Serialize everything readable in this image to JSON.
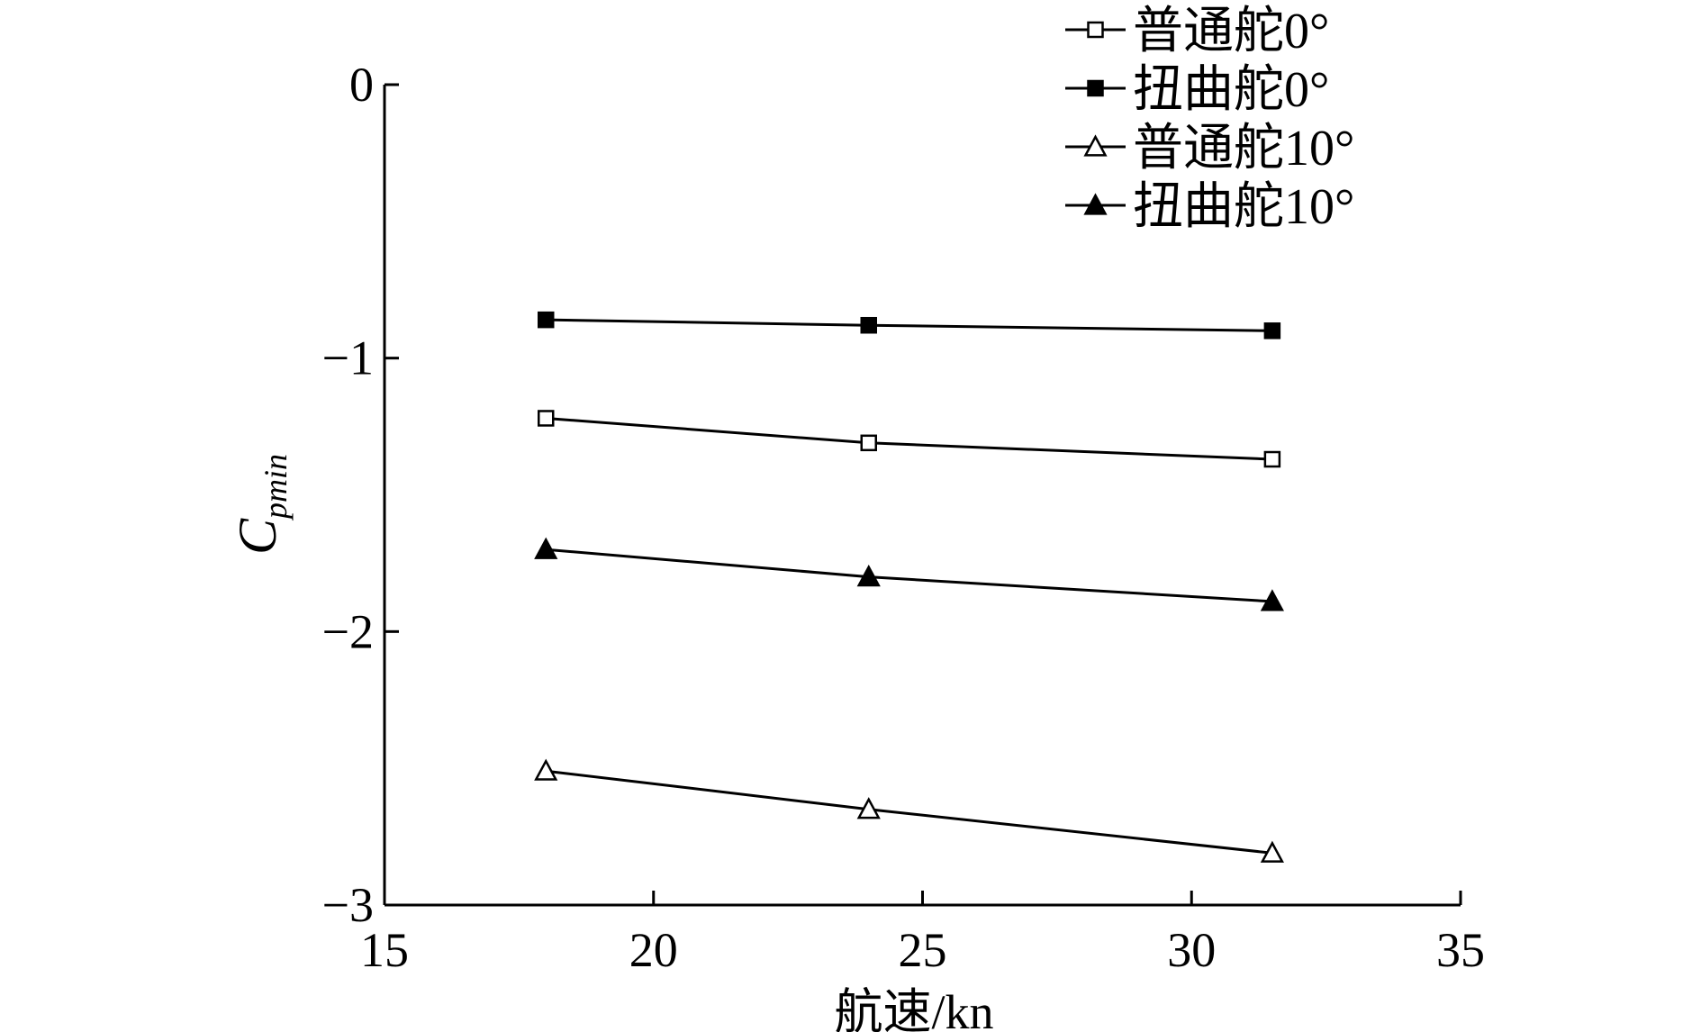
{
  "chart_data": {
    "type": "line",
    "xlabel": "航速/kn",
    "ylabel": {
      "main": "C",
      "sub": "pmin"
    },
    "xlim": [
      15,
      35
    ],
    "ylim": [
      -3,
      0
    ],
    "xticks": [
      15,
      20,
      25,
      30,
      35
    ],
    "yticks": [
      0,
      -1,
      -2,
      -3
    ],
    "xtick_labels": [
      "15",
      "20",
      "25",
      "30",
      "35"
    ],
    "ytick_labels": [
      "0",
      "−1",
      "−2",
      "−3"
    ],
    "grid": false,
    "legend_position": "top-right",
    "series": [
      {
        "name": "普通舵0°",
        "marker": "square-open",
        "x": [
          18,
          24,
          31.5
        ],
        "y": [
          -1.22,
          -1.31,
          -1.37
        ]
      },
      {
        "name": "扭曲舵0°",
        "marker": "square-filled",
        "x": [
          18,
          24,
          31.5
        ],
        "y": [
          -0.86,
          -0.88,
          -0.9
        ]
      },
      {
        "name": "普通舵10°",
        "marker": "triangle-open",
        "x": [
          18,
          24,
          31.5
        ],
        "y": [
          -2.51,
          -2.65,
          -2.81
        ]
      },
      {
        "name": "扭曲舵10°",
        "marker": "triangle-filled",
        "x": [
          18,
          24,
          31.5
        ],
        "y": [
          -1.7,
          -1.8,
          -1.89
        ]
      }
    ]
  }
}
